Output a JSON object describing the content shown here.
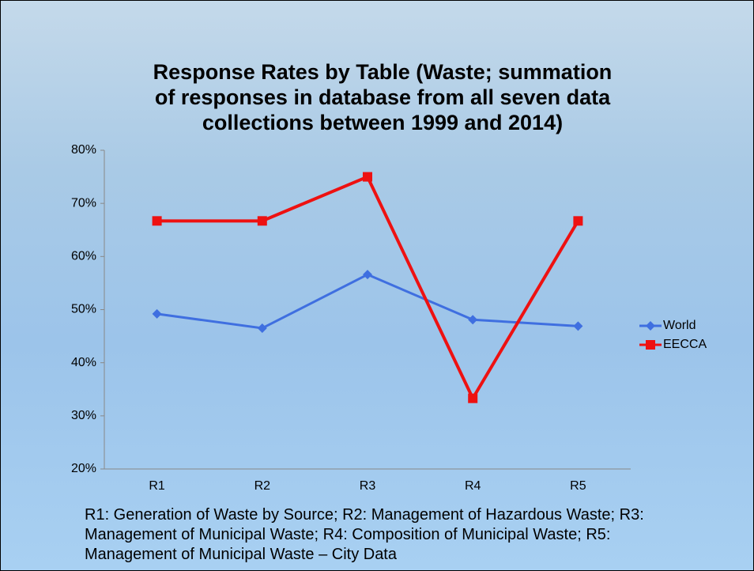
{
  "chart_data": {
    "type": "line",
    "title": "Response Rates by Table (Waste; summation of responses in database from all seven data collections between 1999 and 2014)",
    "categories": [
      "R1",
      "R2",
      "R3",
      "R4",
      "R5"
    ],
    "series": [
      {
        "name": "World",
        "color": "#3f6fe0",
        "marker": "diamond",
        "values": [
          49.2,
          46.5,
          56.6,
          48.1,
          46.9
        ]
      },
      {
        "name": "EECCA",
        "color": "#ee1111",
        "marker": "square",
        "values": [
          66.7,
          66.7,
          75,
          33.3,
          66.7
        ]
      }
    ],
    "ylim": [
      20,
      80
    ],
    "yticks": [
      {
        "value": 20,
        "label": "20%"
      },
      {
        "value": 30,
        "label": "30%"
      },
      {
        "value": 40,
        "label": "40%"
      },
      {
        "value": 50,
        "label": "50%"
      },
      {
        "value": 60,
        "label": "60%"
      },
      {
        "value": 70,
        "label": "70%"
      },
      {
        "value": 80,
        "label": "80%"
      }
    ],
    "legend": "right",
    "caption": "R1: Generation of Waste by Source; R2: Management of Hazardous Waste; R3: Management of Municipal Waste; R4: Composition of Municipal Waste; R5: Management of Municipal Waste – City Data"
  }
}
